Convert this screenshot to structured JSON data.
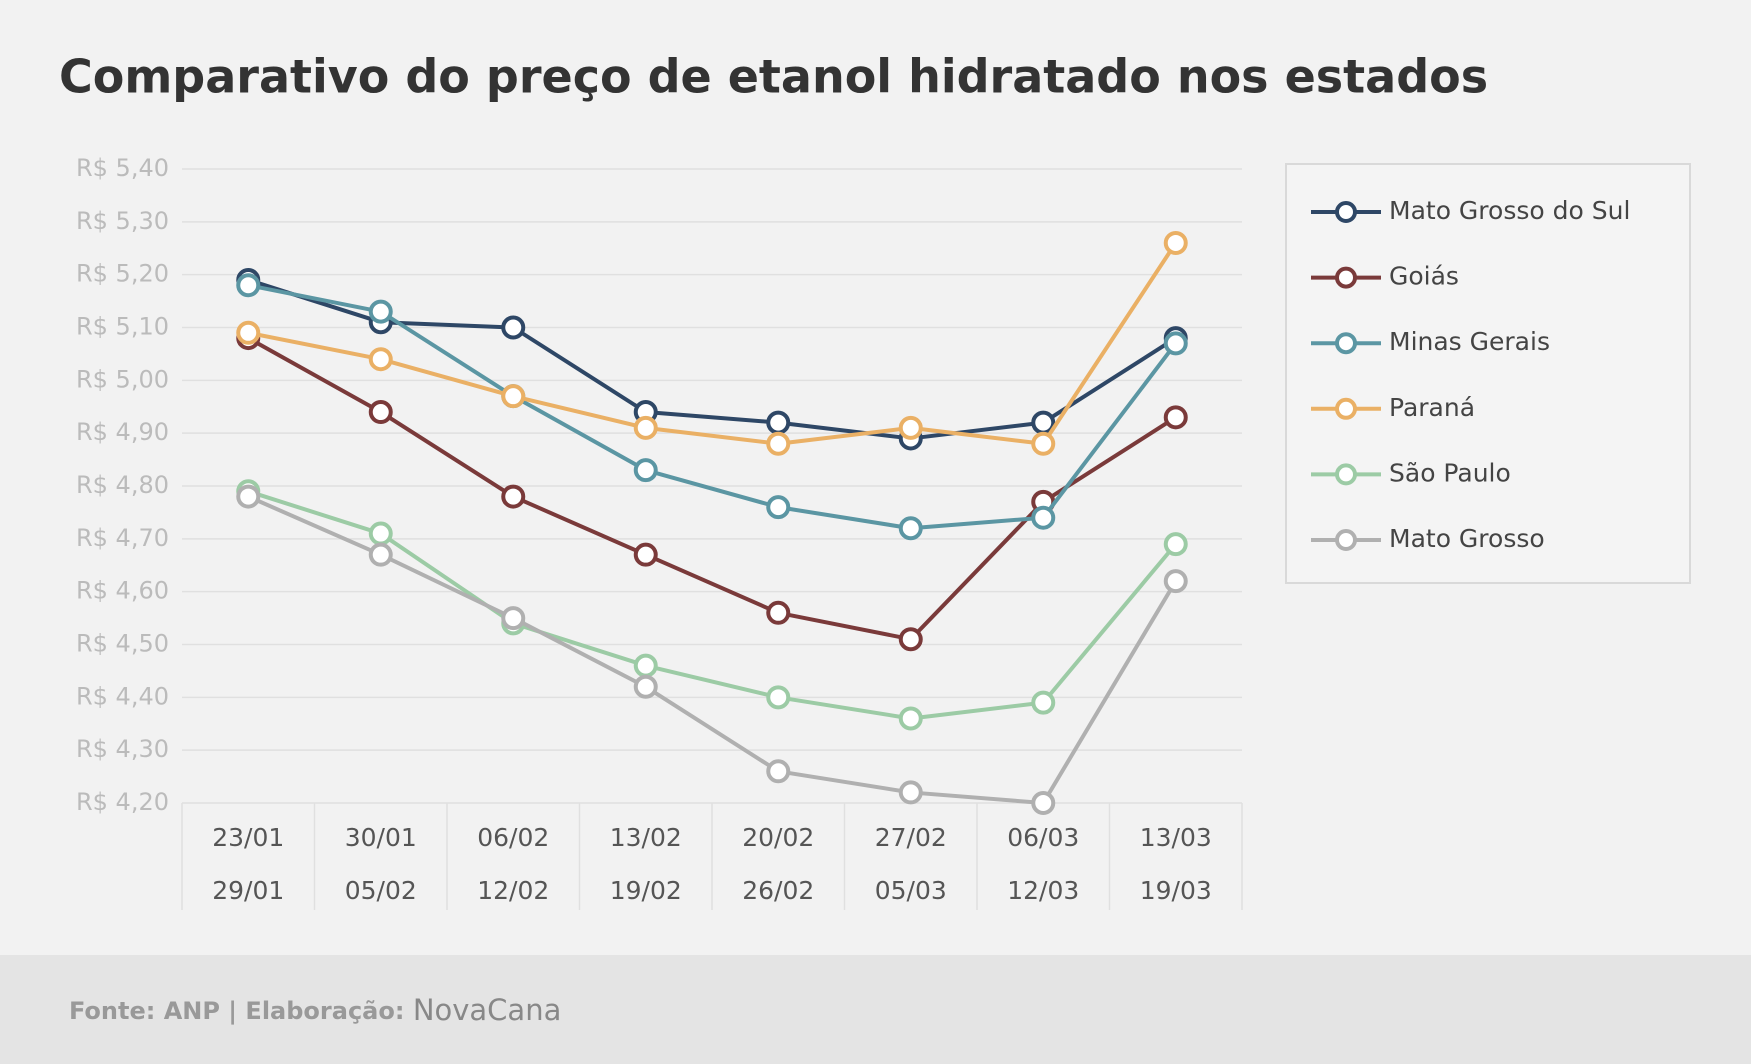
{
  "chart_data": {
    "type": "line",
    "title": "Comparativo do preço de etanol hidratado nos estados",
    "categories": [
      [
        "23/01",
        "29/01"
      ],
      [
        "30/01",
        "05/02"
      ],
      [
        "06/02",
        "12/02"
      ],
      [
        "13/02",
        "19/02"
      ],
      [
        "20/02",
        "26/02"
      ],
      [
        "27/02",
        "05/03"
      ],
      [
        "06/03",
        "12/03"
      ],
      [
        "13/03",
        "19/03"
      ]
    ],
    "series": [
      {
        "name": "Mato Grosso do Sul",
        "color": "#2e4766",
        "values": [
          5.19,
          5.11,
          5.1,
          4.94,
          4.92,
          4.89,
          4.92,
          5.08
        ]
      },
      {
        "name": "Goiás",
        "color": "#7a3a3a",
        "values": [
          5.08,
          4.94,
          4.78,
          4.67,
          4.56,
          4.51,
          4.77,
          4.93
        ]
      },
      {
        "name": "Minas Gerais",
        "color": "#5b96a3",
        "values": [
          5.18,
          5.13,
          4.97,
          4.83,
          4.76,
          4.72,
          4.74,
          5.07
        ]
      },
      {
        "name": "Paraná",
        "color": "#eab065",
        "values": [
          5.09,
          5.04,
          4.97,
          4.91,
          4.88,
          4.91,
          4.88,
          5.26
        ]
      },
      {
        "name": "São Paulo",
        "color": "#9ccba5",
        "values": [
          4.79,
          4.71,
          4.54,
          4.46,
          4.4,
          4.36,
          4.39,
          4.69
        ]
      },
      {
        "name": "Mato Grosso",
        "color": "#b0b0b0",
        "values": [
          4.78,
          4.67,
          4.55,
          4.42,
          4.26,
          4.22,
          4.2,
          4.62
        ]
      }
    ],
    "ylim": [
      4.2,
      5.4
    ],
    "yticks": [
      {
        "value": 4.2,
        "label": "R$ 4,20"
      },
      {
        "value": 4.3,
        "label": "R$ 4,30"
      },
      {
        "value": 4.4,
        "label": "R$ 4,40"
      },
      {
        "value": 4.5,
        "label": "R$ 4,50"
      },
      {
        "value": 4.6,
        "label": "R$ 4,60"
      },
      {
        "value": 4.7,
        "label": "R$ 4,70"
      },
      {
        "value": 4.8,
        "label": "R$ 4,80"
      },
      {
        "value": 4.9,
        "label": "R$ 4,90"
      },
      {
        "value": 5.0,
        "label": "R$ 5,00"
      },
      {
        "value": 5.1,
        "label": "R$ 5,10"
      },
      {
        "value": 5.2,
        "label": "R$ 5,20"
      },
      {
        "value": 5.3,
        "label": "R$ 5,30"
      },
      {
        "value": 5.4,
        "label": "R$ 5,40"
      }
    ],
    "grid": true,
    "legend": "right",
    "source": "Fonte: ANP | Elaboração:",
    "brand": "NovaCana"
  }
}
